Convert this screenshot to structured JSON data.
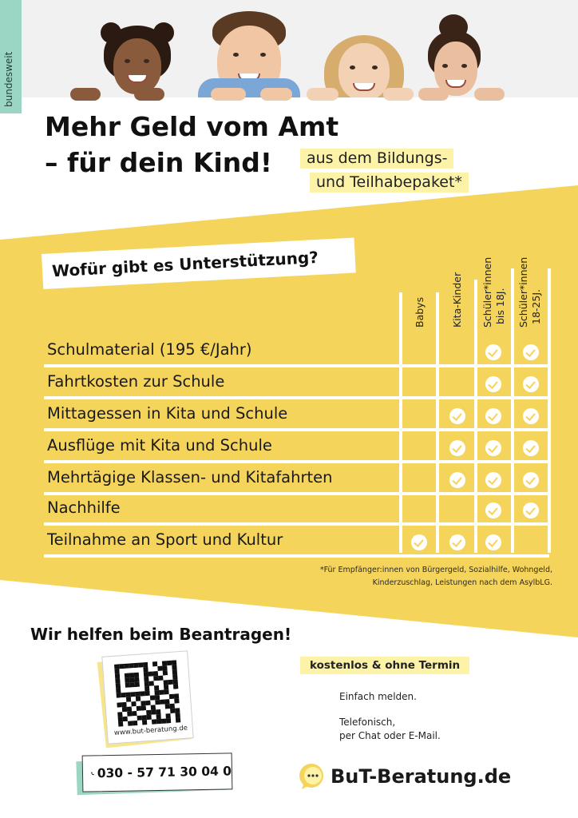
{
  "side_tag": "bundesweit",
  "headline": {
    "line1": "Mehr Geld vom Amt",
    "line2": "– für dein Kind!"
  },
  "subheadline": {
    "line1": "aus dem Bildungs-",
    "line2": "und Teilhabepaket*"
  },
  "question": "Wofür gibt es Unterstützung?",
  "columns": [
    {
      "line1": "Babys",
      "line2": ""
    },
    {
      "line1": "Kita-Kinder",
      "line2": ""
    },
    {
      "line1": "Schüler*innen",
      "line2": "bis 18J."
    },
    {
      "line1": "Schüler*innen",
      "line2": "18-25J."
    }
  ],
  "rows": [
    {
      "label": "Schulmaterial (195 €/Jahr)",
      "checks": [
        false,
        false,
        true,
        true
      ]
    },
    {
      "label": "Fahrtkosten zur Schule",
      "checks": [
        false,
        false,
        true,
        true
      ]
    },
    {
      "label": "Mittagessen in Kita und Schule",
      "checks": [
        false,
        true,
        true,
        true
      ]
    },
    {
      "label": "Ausflüge mit Kita und Schule",
      "checks": [
        false,
        true,
        true,
        true
      ]
    },
    {
      "label": "Mehrtägige Klassen- und Kitafahrten",
      "checks": [
        false,
        true,
        true,
        true
      ]
    },
    {
      "label": "Nachhilfe",
      "checks": [
        false,
        false,
        true,
        true
      ]
    },
    {
      "label": "Teilnahme an Sport und Kultur",
      "checks": [
        true,
        true,
        true,
        false
      ]
    }
  ],
  "footnote": {
    "line1": "*Für Empfänger:innen von Bürgergeld, Sozialhilfe, Wohngeld,",
    "line2": "Kinderzuschlag, Leistungen nach dem AsylbLG."
  },
  "help_title": "Wir helfen beim Beantragen!",
  "qr_url": "www.but-beratung.de",
  "phone": "030 - 57 71 30 04 0",
  "free_tag": "kostenlos & ohne Termin",
  "info": {
    "line1": "Einfach melden.",
    "line2": "Telefonisch,",
    "line3": "per Chat oder E-Mail."
  },
  "logo_text": "BuT-Beratung.de",
  "colors": {
    "yellow": "#f5d45c",
    "light_yellow": "#fdf3a8",
    "mint": "#9bd6c4"
  },
  "icons": [
    "check-icon",
    "phone-icon",
    "chat-bubble-icon",
    "qr-code"
  ]
}
